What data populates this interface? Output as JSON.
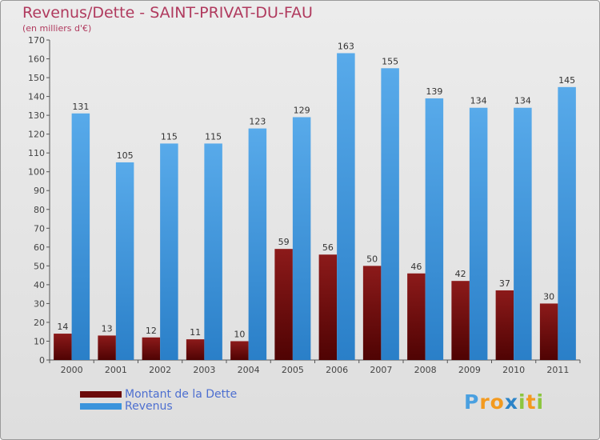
{
  "title": "Revenus/Dette - SAINT-PRIVAT-DU-FAU",
  "subtitle": "(en milliers d'€)",
  "logo": {
    "letters": [
      {
        "ch": "P",
        "color": "#4aa0e0"
      },
      {
        "ch": "r",
        "color": "#f39a1f"
      },
      {
        "ch": "o",
        "color": "#f39a1f"
      },
      {
        "ch": "x",
        "color": "#2c84c8"
      },
      {
        "ch": "i",
        "color": "#8cc63f"
      },
      {
        "ch": "t",
        "color": "#f39a1f"
      },
      {
        "ch": "i",
        "color": "#8cc63f"
      }
    ]
  },
  "colors": {
    "dette": "#6b0a0a",
    "revenus": "#3a94dc"
  },
  "chart_data": {
    "type": "bar",
    "title": "Revenus/Dette - SAINT-PRIVAT-DU-FAU",
    "subtitle": "(en milliers d'€)",
    "categories": [
      "2000",
      "2001",
      "2002",
      "2003",
      "2004",
      "2005",
      "2006",
      "2007",
      "2008",
      "2009",
      "2010",
      "2011"
    ],
    "series": [
      {
        "name": "Montant de la Dette",
        "values": [
          14,
          13,
          12,
          11,
          10,
          59,
          56,
          50,
          46,
          42,
          37,
          30
        ]
      },
      {
        "name": "Revenus",
        "values": [
          131,
          105,
          115,
          115,
          123,
          129,
          163,
          155,
          139,
          134,
          134,
          145
        ]
      }
    ],
    "ylim": [
      0,
      170
    ],
    "ytick_step": 10,
    "grid": false,
    "legend_position": "bottom-left",
    "xlabel": "",
    "ylabel": ""
  }
}
